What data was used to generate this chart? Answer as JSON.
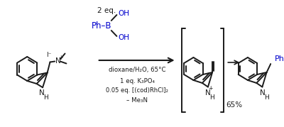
{
  "bg_color": "#ffffff",
  "black": "#1a1a1a",
  "blue": "#0000cc",
  "fig_width": 4.0,
  "fig_height": 1.79,
  "dpi": 100,
  "reagent_eq": "2 eq.",
  "conditions": [
    "dioxane/H₂O, 65°C",
    "1 eq. K₃PO₄",
    "0.05 eq. [(cod)RhCl]₂",
    "– Me₃N"
  ],
  "yield": "65%"
}
